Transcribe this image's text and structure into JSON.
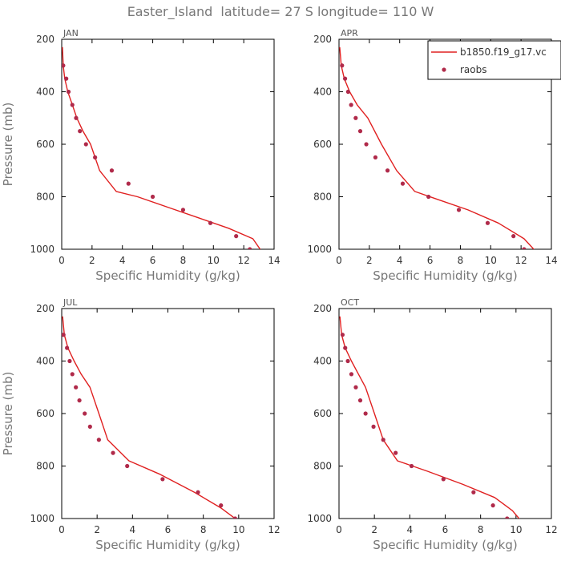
{
  "title": "Easter_Island  latitude= 27 S longitude= 110 W",
  "legend": {
    "model_label": "b1850.f19_g17.vc",
    "obs_label": "raobs",
    "placement": "top-right of APR panel"
  },
  "colors": {
    "model_line": "#e02020",
    "obs_marker": "#b02a4a",
    "axis": "#000000",
    "text": "#777777"
  },
  "chart_data": [
    {
      "type": "line",
      "panel": "JAN",
      "xlabel": "Specific Humidity (g/kg)",
      "ylabel": "Pressure (mb)",
      "xlim": [
        0,
        14
      ],
      "xticks": [
        0,
        2,
        4,
        6,
        8,
        10,
        12,
        14
      ],
      "ylim": [
        1000,
        200
      ],
      "yticks": [
        200,
        400,
        600,
        800,
        1000
      ],
      "series": [
        {
          "name": "b1850.f19_g17.vc",
          "kind": "line",
          "x": [
            0.05,
            0.1,
            0.2,
            0.4,
            0.7,
            1.0,
            1.4,
            1.9,
            2.5,
            3.6,
            5.0,
            7.0,
            9.0,
            11.0,
            12.6,
            13.2
          ],
          "y": [
            230,
            300,
            350,
            400,
            450,
            500,
            550,
            600,
            700,
            780,
            800,
            840,
            880,
            920,
            960,
            1010
          ]
        },
        {
          "name": "raobs",
          "kind": "scatter",
          "x": [
            0.1,
            0.3,
            0.45,
            0.7,
            0.95,
            1.2,
            1.6,
            2.2,
            3.3,
            4.4,
            6.0,
            8.0,
            9.8,
            11.5,
            12.4
          ],
          "y": [
            300,
            350,
            400,
            450,
            500,
            550,
            600,
            650,
            700,
            750,
            800,
            850,
            900,
            950,
            1000
          ]
        }
      ]
    },
    {
      "type": "line",
      "panel": "APR",
      "xlabel": "Specific Humidity (g/kg)",
      "ylabel": "",
      "xlim": [
        0,
        14
      ],
      "xticks": [
        0,
        2,
        4,
        6,
        8,
        10,
        12,
        14
      ],
      "ylim": [
        1000,
        200
      ],
      "yticks": [
        200,
        400,
        600,
        800,
        1000
      ],
      "series": [
        {
          "name": "b1850.f19_g17.vc",
          "kind": "line",
          "x": [
            0.05,
            0.15,
            0.35,
            0.7,
            1.2,
            1.9,
            2.8,
            3.8,
            5.0,
            6.5,
            8.5,
            10.5,
            12.2,
            13.0
          ],
          "y": [
            230,
            300,
            350,
            400,
            450,
            500,
            600,
            700,
            780,
            810,
            850,
            900,
            960,
            1010
          ]
        },
        {
          "name": "raobs",
          "kind": "scatter",
          "x": [
            0.2,
            0.4,
            0.6,
            0.8,
            1.1,
            1.4,
            1.8,
            2.4,
            3.2,
            4.2,
            5.9,
            7.9,
            9.8,
            11.5,
            12.2
          ],
          "y": [
            300,
            350,
            400,
            450,
            500,
            550,
            600,
            650,
            700,
            750,
            800,
            850,
            900,
            950,
            1000
          ]
        }
      ]
    },
    {
      "type": "line",
      "panel": "JUL",
      "xlabel": "Specific Humidity (g/kg)",
      "ylabel": "Pressure (mb)",
      "xlim": [
        0,
        12
      ],
      "xticks": [
        0,
        2,
        4,
        6,
        8,
        10,
        12
      ],
      "ylim": [
        1000,
        200
      ],
      "yticks": [
        200,
        400,
        600,
        800,
        1000
      ],
      "series": [
        {
          "name": "b1850.f19_g17.vc",
          "kind": "line",
          "x": [
            0.05,
            0.15,
            0.35,
            0.7,
            1.1,
            1.6,
            2.1,
            2.6,
            3.8,
            5.5,
            7.5,
            9.0,
            10.0
          ],
          "y": [
            230,
            300,
            350,
            400,
            450,
            500,
            600,
            700,
            780,
            830,
            900,
            960,
            1010
          ]
        },
        {
          "name": "raobs",
          "kind": "scatter",
          "x": [
            0.1,
            0.3,
            0.45,
            0.6,
            0.8,
            1.0,
            1.3,
            1.6,
            2.1,
            2.9,
            3.7,
            5.7,
            7.7,
            9.0,
            9.8
          ],
          "y": [
            300,
            350,
            400,
            450,
            500,
            550,
            600,
            650,
            700,
            750,
            800,
            850,
            900,
            950,
            1000
          ]
        }
      ]
    },
    {
      "type": "line",
      "panel": "OCT",
      "xlabel": "Specific Humidity (g/kg)",
      "ylabel": "",
      "xlim": [
        0,
        12
      ],
      "xticks": [
        0,
        2,
        4,
        6,
        8,
        10,
        12
      ],
      "ylim": [
        1000,
        200
      ],
      "yticks": [
        200,
        400,
        600,
        800,
        1000
      ],
      "series": [
        {
          "name": "b1850.f19_g17.vc",
          "kind": "line",
          "x": [
            0.05,
            0.15,
            0.35,
            0.7,
            1.1,
            1.5,
            2.0,
            2.5,
            3.3,
            5.0,
            7.0,
            8.8,
            9.8,
            10.3
          ],
          "y": [
            230,
            300,
            350,
            400,
            450,
            500,
            600,
            700,
            780,
            820,
            870,
            920,
            970,
            1010
          ]
        },
        {
          "name": "raobs",
          "kind": "scatter",
          "x": [
            0.2,
            0.35,
            0.5,
            0.7,
            0.95,
            1.2,
            1.5,
            1.95,
            2.5,
            3.2,
            4.1,
            5.9,
            7.6,
            8.7,
            9.5
          ],
          "y": [
            300,
            350,
            400,
            450,
            500,
            550,
            600,
            650,
            700,
            750,
            800,
            850,
            900,
            950,
            1000
          ]
        }
      ]
    }
  ]
}
